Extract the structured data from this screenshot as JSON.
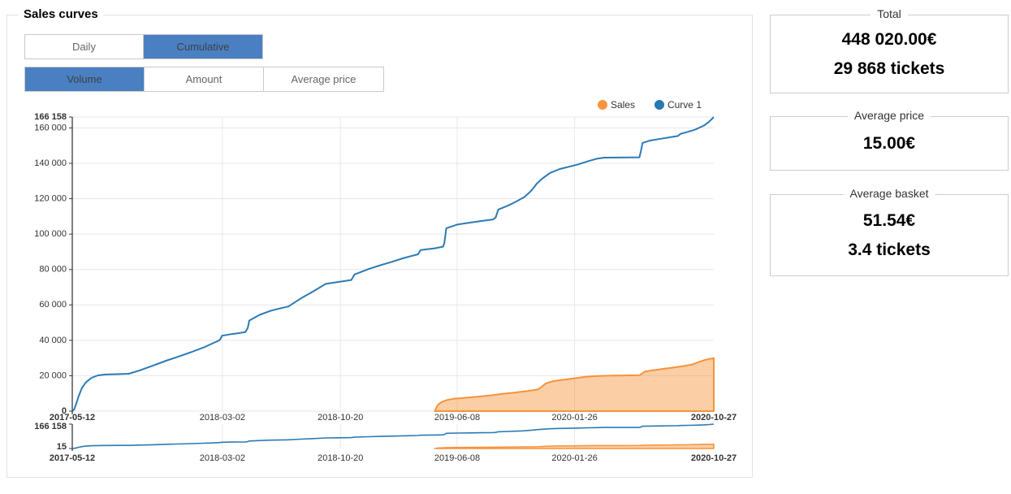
{
  "panel": {
    "title": "Sales curves"
  },
  "toggles": {
    "period": {
      "options": [
        {
          "label": "Daily",
          "selected": false
        },
        {
          "label": "Cumulative",
          "selected": true
        }
      ]
    },
    "metric": {
      "options": [
        {
          "label": "Volume",
          "selected": true
        },
        {
          "label": "Amount",
          "selected": false
        },
        {
          "label": "Average price",
          "selected": false
        }
      ]
    }
  },
  "colors": {
    "accent_blue": "#4a80c2",
    "line_blue": "#2b7ab5",
    "line_orange": "#f7923b",
    "area_orange_fill": "rgba(247,147,56,0.45)",
    "grid": "#e7e7e7",
    "axis": "#3a3a3a",
    "tick_text": "#333333"
  },
  "cards": [
    {
      "title": "Total",
      "values": [
        "448 020.00€",
        "29 868 tickets"
      ]
    },
    {
      "title": "Average price",
      "values": [
        "15.00€"
      ]
    },
    {
      "title": "Average basket",
      "values": [
        "51.54€",
        "3.4 tickets"
      ]
    }
  ],
  "chart_data": {
    "type": "line",
    "title": "Sales curves",
    "legend": [
      {
        "label": "Sales",
        "color": "#f7943c"
      },
      {
        "label": "Curve 1",
        "color": "#2878b4"
      }
    ],
    "legend_position": "top-right",
    "grid": true,
    "x_axis": {
      "start": "2017-05-12",
      "end": "2020-10-27",
      "ticks": [
        {
          "f": 0.0,
          "label": "2017-05-12",
          "bold": true
        },
        {
          "f": 0.234,
          "label": "2018-03-02",
          "bold": false
        },
        {
          "f": 0.418,
          "label": "2018-10-20",
          "bold": false
        },
        {
          "f": 0.6,
          "label": "2019-06-08",
          "bold": false
        },
        {
          "f": 0.783,
          "label": "2020-01-26",
          "bold": false
        },
        {
          "f": 1.0,
          "label": "2020-10-27",
          "bold": true
        }
      ]
    },
    "y_axis": {
      "min": 0,
      "max": 166158,
      "ticks": [
        {
          "v": 166158,
          "label": "166 158",
          "bold": true
        },
        {
          "v": 160000,
          "label": "160 000",
          "bold": false
        },
        {
          "v": 140000,
          "label": "140 000",
          "bold": false
        },
        {
          "v": 120000,
          "label": "120 000",
          "bold": false
        },
        {
          "v": 100000,
          "label": "100 000",
          "bold": false
        },
        {
          "v": 80000,
          "label": "80 000",
          "bold": false
        },
        {
          "v": 60000,
          "label": "60 000",
          "bold": false
        },
        {
          "v": 40000,
          "label": "40 000",
          "bold": false
        },
        {
          "v": 20000,
          "label": "20 000",
          "bold": false
        },
        {
          "v": 0,
          "label": "0",
          "bold": true
        }
      ]
    },
    "series": [
      {
        "name": "Sales",
        "type": "area",
        "color": "#f7923b",
        "fill": "rgba(247,147,56,0.45)",
        "final_value": 29868,
        "points": [
          [
            0.565,
            0
          ],
          [
            0.567,
            1500
          ],
          [
            0.57,
            3600
          ],
          [
            0.576,
            5200
          ],
          [
            0.584,
            6300
          ],
          [
            0.595,
            7000
          ],
          [
            0.61,
            7500
          ],
          [
            0.63,
            8100
          ],
          [
            0.652,
            8900
          ],
          [
            0.672,
            9800
          ],
          [
            0.69,
            10500
          ],
          [
            0.71,
            11400
          ],
          [
            0.726,
            12300
          ],
          [
            0.732,
            13800
          ],
          [
            0.738,
            15600
          ],
          [
            0.748,
            16800
          ],
          [
            0.762,
            17600
          ],
          [
            0.778,
            18300
          ],
          [
            0.8,
            19400
          ],
          [
            0.815,
            19800
          ],
          [
            0.835,
            20000
          ],
          [
            0.884,
            20300
          ],
          [
            0.893,
            22400
          ],
          [
            0.905,
            23100
          ],
          [
            0.922,
            23900
          ],
          [
            0.94,
            24800
          ],
          [
            0.955,
            25600
          ],
          [
            0.966,
            26300
          ],
          [
            0.975,
            27600
          ],
          [
            0.985,
            28800
          ],
          [
            0.993,
            29500
          ],
          [
            1.0,
            29868
          ]
        ]
      },
      {
        "name": "Curve 1",
        "type": "line",
        "color": "#2b7ab5",
        "final_value": 166158,
        "points": [
          [
            0.0,
            0
          ],
          [
            0.003,
            1000
          ],
          [
            0.006,
            4000
          ],
          [
            0.01,
            8500
          ],
          [
            0.015,
            13000
          ],
          [
            0.021,
            16200
          ],
          [
            0.03,
            18800
          ],
          [
            0.04,
            20200
          ],
          [
            0.052,
            20700
          ],
          [
            0.07,
            20900
          ],
          [
            0.088,
            21100
          ],
          [
            0.105,
            23000
          ],
          [
            0.125,
            25600
          ],
          [
            0.148,
            28700
          ],
          [
            0.163,
            30500
          ],
          [
            0.185,
            33300
          ],
          [
            0.205,
            36000
          ],
          [
            0.225,
            39300
          ],
          [
            0.23,
            40200
          ],
          [
            0.2335,
            42600
          ],
          [
            0.248,
            43500
          ],
          [
            0.262,
            44200
          ],
          [
            0.27,
            44700
          ],
          [
            0.2735,
            47000
          ],
          [
            0.276,
            51200
          ],
          [
            0.292,
            54400
          ],
          [
            0.31,
            56800
          ],
          [
            0.32,
            57700
          ],
          [
            0.337,
            59100
          ],
          [
            0.356,
            63600
          ],
          [
            0.376,
            67700
          ],
          [
            0.395,
            71900
          ],
          [
            0.415,
            73000
          ],
          [
            0.435,
            74100
          ],
          [
            0.44,
            77200
          ],
          [
            0.462,
            80300
          ],
          [
            0.48,
            82400
          ],
          [
            0.497,
            84200
          ],
          [
            0.515,
            86300
          ],
          [
            0.528,
            87600
          ],
          [
            0.539,
            88600
          ],
          [
            0.543,
            91000
          ],
          [
            0.565,
            92000
          ],
          [
            0.578,
            92900
          ],
          [
            0.58,
            95000
          ],
          [
            0.583,
            103300
          ],
          [
            0.6,
            105400
          ],
          [
            0.62,
            106500
          ],
          [
            0.64,
            107500
          ],
          [
            0.656,
            108300
          ],
          [
            0.66,
            109400
          ],
          [
            0.664,
            113900
          ],
          [
            0.68,
            116200
          ],
          [
            0.69,
            118000
          ],
          [
            0.705,
            121000
          ],
          [
            0.714,
            124000
          ],
          [
            0.72,
            126500
          ],
          [
            0.724,
            128500
          ],
          [
            0.733,
            131500
          ],
          [
            0.745,
            134600
          ],
          [
            0.76,
            136800
          ],
          [
            0.787,
            139200
          ],
          [
            0.805,
            141300
          ],
          [
            0.818,
            142600
          ],
          [
            0.83,
            143200
          ],
          [
            0.884,
            143400
          ],
          [
            0.8865,
            147000
          ],
          [
            0.889,
            151500
          ],
          [
            0.9,
            152800
          ],
          [
            0.918,
            153900
          ],
          [
            0.935,
            154900
          ],
          [
            0.944,
            155400
          ],
          [
            0.948,
            156600
          ],
          [
            0.96,
            157800
          ],
          [
            0.972,
            159200
          ],
          [
            0.985,
            161400
          ],
          [
            0.993,
            163600
          ],
          [
            1.0,
            166158
          ]
        ]
      }
    ],
    "navigator": {
      "y_top": {
        "label": "166 158",
        "bold": true
      },
      "y_bottom": {
        "label": "15",
        "bold": true
      },
      "x_ticks_same_as_main": true
    }
  }
}
